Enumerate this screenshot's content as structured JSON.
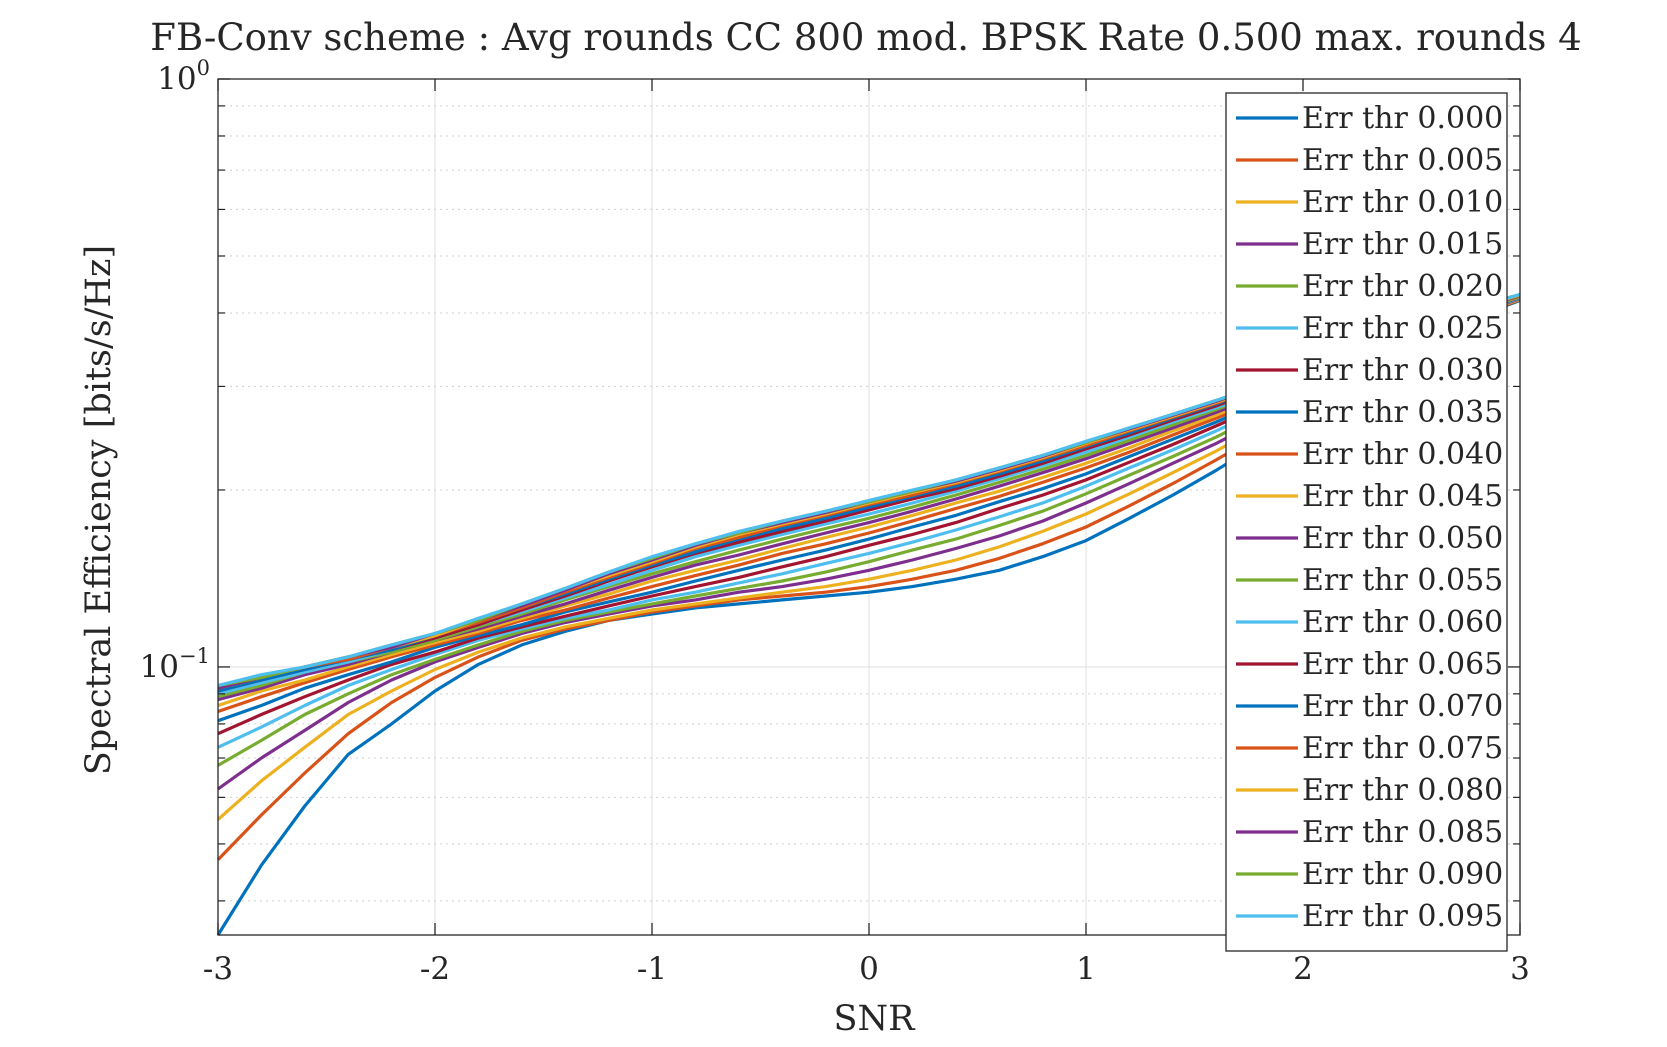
{
  "chart_data": {
    "type": "line",
    "title": "FB-Conv scheme : Avg rounds CC 800 mod. BPSK Rate 0.500 max. rounds 4",
    "xlabel": "SNR",
    "ylabel": "Spectral Efficiency [bits/s/Hz]",
    "xlim": [
      -3,
      3
    ],
    "ylim": [
      0.035,
      1
    ],
    "y_scale": "log",
    "grid": true,
    "legend_position": "right-inside",
    "x_ticks": [
      "-3",
      "-2",
      "-1",
      "0",
      "1",
      "2",
      "3"
    ],
    "y_tick_labels": [
      {
        "base": "10",
        "exp": "0",
        "value": 1
      },
      {
        "base": "10",
        "exp": "−1",
        "value": 0.1
      }
    ],
    "x": [
      -3,
      -2.8,
      -2.6,
      -2.4,
      -2.2,
      -2,
      -1.8,
      -1.6,
      -1.4,
      -1.2,
      -1,
      -0.8,
      -0.6,
      -0.4,
      -0.2,
      0,
      0.2,
      0.4,
      0.6,
      0.8,
      1,
      1.2,
      1.4,
      1.6,
      1.8,
      2,
      2.2,
      2.4,
      2.6,
      2.8,
      3
    ],
    "series": [
      {
        "name": "Err thr 0.000",
        "color": "#0072BD",
        "values": [
          0.035,
          0.046,
          0.058,
          0.071,
          0.08,
          0.091,
          0.101,
          0.109,
          0.115,
          0.12,
          0.123,
          0.126,
          0.128,
          0.13,
          0.132,
          0.134,
          0.137,
          0.141,
          0.146,
          0.154,
          0.164,
          0.179,
          0.196,
          0.216,
          0.24,
          0.28,
          0.31,
          0.34,
          0.37,
          0.395,
          0.42
        ]
      },
      {
        "name": "Err thr 0.005",
        "color": "#D95319",
        "values": [
          0.047,
          0.056,
          0.066,
          0.077,
          0.087,
          0.096,
          0.104,
          0.111,
          0.116,
          0.12,
          0.124,
          0.127,
          0.13,
          0.132,
          0.134,
          0.137,
          0.141,
          0.146,
          0.153,
          0.162,
          0.173,
          0.188,
          0.205,
          0.225,
          0.248,
          0.285,
          0.315,
          0.345,
          0.372,
          0.397,
          0.421
        ]
      },
      {
        "name": "Err thr 0.010",
        "color": "#EDB120",
        "values": [
          0.055,
          0.064,
          0.073,
          0.083,
          0.091,
          0.099,
          0.106,
          0.112,
          0.117,
          0.121,
          0.125,
          0.128,
          0.131,
          0.134,
          0.137,
          0.141,
          0.146,
          0.152,
          0.16,
          0.17,
          0.182,
          0.197,
          0.214,
          0.233,
          0.256,
          0.29,
          0.319,
          0.348,
          0.374,
          0.399,
          0.422
        ]
      },
      {
        "name": "Err thr 0.015",
        "color": "#7E2F8E",
        "values": [
          0.062,
          0.07,
          0.078,
          0.087,
          0.095,
          0.102,
          0.108,
          0.114,
          0.119,
          0.123,
          0.127,
          0.13,
          0.134,
          0.137,
          0.141,
          0.146,
          0.152,
          0.159,
          0.167,
          0.177,
          0.19,
          0.205,
          0.222,
          0.24,
          0.262,
          0.295,
          0.323,
          0.351,
          0.376,
          0.4,
          0.423
        ]
      },
      {
        "name": "Err thr 0.020",
        "color": "#77AC30",
        "values": [
          0.068,
          0.075,
          0.083,
          0.09,
          0.097,
          0.103,
          0.109,
          0.115,
          0.12,
          0.124,
          0.128,
          0.132,
          0.136,
          0.14,
          0.145,
          0.151,
          0.158,
          0.165,
          0.174,
          0.184,
          0.197,
          0.212,
          0.228,
          0.246,
          0.268,
          0.299,
          0.326,
          0.353,
          0.378,
          0.401,
          0.424
        ]
      },
      {
        "name": "Err thr 0.025",
        "color": "#4DBEEE",
        "values": [
          0.073,
          0.079,
          0.086,
          0.093,
          0.099,
          0.105,
          0.111,
          0.116,
          0.121,
          0.125,
          0.13,
          0.134,
          0.139,
          0.144,
          0.15,
          0.156,
          0.163,
          0.171,
          0.18,
          0.19,
          0.203,
          0.218,
          0.234,
          0.252,
          0.273,
          0.303,
          0.329,
          0.355,
          0.379,
          0.402,
          0.424
        ]
      },
      {
        "name": "Err thr 0.030",
        "color": "#A2142F",
        "values": [
          0.077,
          0.083,
          0.089,
          0.095,
          0.101,
          0.106,
          0.112,
          0.117,
          0.122,
          0.127,
          0.132,
          0.137,
          0.142,
          0.148,
          0.154,
          0.161,
          0.168,
          0.176,
          0.186,
          0.196,
          0.208,
          0.223,
          0.239,
          0.257,
          0.277,
          0.306,
          0.332,
          0.357,
          0.381,
          0.403,
          0.425
        ]
      },
      {
        "name": "Err thr 0.035",
        "color": "#0072BD",
        "values": [
          0.081,
          0.086,
          0.092,
          0.097,
          0.102,
          0.108,
          0.113,
          0.118,
          0.124,
          0.129,
          0.134,
          0.14,
          0.146,
          0.152,
          0.158,
          0.165,
          0.173,
          0.181,
          0.191,
          0.201,
          0.213,
          0.228,
          0.244,
          0.261,
          0.281,
          0.309,
          0.334,
          0.359,
          0.382,
          0.404,
          0.425
        ]
      },
      {
        "name": "Err thr 0.040",
        "color": "#D95319",
        "values": [
          0.084,
          0.089,
          0.094,
          0.099,
          0.104,
          0.109,
          0.114,
          0.12,
          0.125,
          0.131,
          0.137,
          0.143,
          0.149,
          0.156,
          0.162,
          0.169,
          0.177,
          0.186,
          0.195,
          0.206,
          0.218,
          0.232,
          0.248,
          0.265,
          0.284,
          0.312,
          0.336,
          0.36,
          0.383,
          0.405,
          0.426
        ]
      },
      {
        "name": "Err thr 0.045",
        "color": "#EDB120",
        "values": [
          0.086,
          0.091,
          0.095,
          0.1,
          0.105,
          0.11,
          0.115,
          0.121,
          0.127,
          0.133,
          0.14,
          0.146,
          0.152,
          0.159,
          0.166,
          0.173,
          0.181,
          0.19,
          0.199,
          0.21,
          0.222,
          0.236,
          0.252,
          0.268,
          0.287,
          0.314,
          0.338,
          0.362,
          0.384,
          0.405,
          0.426
        ]
      },
      {
        "name": "Err thr 0.050",
        "color": "#7E2F8E",
        "values": [
          0.088,
          0.092,
          0.097,
          0.101,
          0.106,
          0.111,
          0.116,
          0.122,
          0.128,
          0.135,
          0.142,
          0.149,
          0.155,
          0.162,
          0.169,
          0.176,
          0.184,
          0.193,
          0.203,
          0.214,
          0.226,
          0.24,
          0.255,
          0.271,
          0.29,
          0.316,
          0.34,
          0.363,
          0.385,
          0.406,
          0.427
        ]
      },
      {
        "name": "Err thr 0.055",
        "color": "#77AC30",
        "values": [
          0.089,
          0.093,
          0.098,
          0.102,
          0.106,
          0.111,
          0.117,
          0.123,
          0.13,
          0.137,
          0.144,
          0.151,
          0.158,
          0.165,
          0.172,
          0.179,
          0.187,
          0.196,
          0.206,
          0.217,
          0.229,
          0.243,
          0.258,
          0.274,
          0.292,
          0.318,
          0.341,
          0.364,
          0.386,
          0.407,
          0.427
        ]
      },
      {
        "name": "Err thr 0.060",
        "color": "#4DBEEE",
        "values": [
          0.09,
          0.094,
          0.098,
          0.102,
          0.107,
          0.112,
          0.118,
          0.124,
          0.131,
          0.138,
          0.146,
          0.154,
          0.161,
          0.168,
          0.175,
          0.182,
          0.19,
          0.199,
          0.209,
          0.22,
          0.232,
          0.246,
          0.261,
          0.276,
          0.294,
          0.319,
          0.342,
          0.365,
          0.386,
          0.407,
          0.428
        ]
      },
      {
        "name": "Err thr 0.065",
        "color": "#A2142F",
        "values": [
          0.091,
          0.095,
          0.099,
          0.103,
          0.107,
          0.112,
          0.118,
          0.125,
          0.132,
          0.14,
          0.148,
          0.156,
          0.163,
          0.17,
          0.177,
          0.185,
          0.193,
          0.201,
          0.211,
          0.222,
          0.235,
          0.248,
          0.263,
          0.278,
          0.296,
          0.32,
          0.343,
          0.366,
          0.387,
          0.408,
          0.428
        ]
      },
      {
        "name": "Err thr 0.070",
        "color": "#0072BD",
        "values": [
          0.091,
          0.095,
          0.099,
          0.103,
          0.107,
          0.113,
          0.119,
          0.126,
          0.133,
          0.141,
          0.149,
          0.157,
          0.165,
          0.172,
          0.179,
          0.187,
          0.195,
          0.203,
          0.213,
          0.224,
          0.237,
          0.25,
          0.265,
          0.28,
          0.297,
          0.321,
          0.344,
          0.366,
          0.388,
          0.408,
          0.429
        ]
      },
      {
        "name": "Err thr 0.075",
        "color": "#D95319",
        "values": [
          0.092,
          0.096,
          0.1,
          0.103,
          0.108,
          0.113,
          0.119,
          0.126,
          0.134,
          0.142,
          0.15,
          0.159,
          0.166,
          0.174,
          0.181,
          0.189,
          0.196,
          0.205,
          0.215,
          0.226,
          0.238,
          0.252,
          0.266,
          0.281,
          0.298,
          0.322,
          0.345,
          0.367,
          0.388,
          0.409,
          0.429
        ]
      },
      {
        "name": "Err thr 0.080",
        "color": "#EDB120",
        "values": [
          0.092,
          0.096,
          0.1,
          0.104,
          0.108,
          0.113,
          0.12,
          0.127,
          0.135,
          0.143,
          0.151,
          0.16,
          0.168,
          0.175,
          0.182,
          0.19,
          0.198,
          0.206,
          0.216,
          0.227,
          0.24,
          0.253,
          0.267,
          0.282,
          0.299,
          0.323,
          0.345,
          0.367,
          0.389,
          0.409,
          0.429
        ]
      },
      {
        "name": "Err thr 0.085",
        "color": "#7E2F8E",
        "values": [
          0.092,
          0.096,
          0.1,
          0.104,
          0.108,
          0.114,
          0.12,
          0.127,
          0.135,
          0.144,
          0.152,
          0.161,
          0.169,
          0.176,
          0.183,
          0.191,
          0.199,
          0.207,
          0.217,
          0.228,
          0.241,
          0.254,
          0.268,
          0.283,
          0.3,
          0.324,
          0.346,
          0.368,
          0.389,
          0.41,
          0.43
        ]
      },
      {
        "name": "Err thr 0.090",
        "color": "#77AC30",
        "values": [
          0.093,
          0.096,
          0.1,
          0.104,
          0.109,
          0.114,
          0.12,
          0.128,
          0.136,
          0.145,
          0.153,
          0.162,
          0.169,
          0.177,
          0.184,
          0.191,
          0.199,
          0.208,
          0.218,
          0.229,
          0.241,
          0.255,
          0.269,
          0.284,
          0.3,
          0.324,
          0.346,
          0.368,
          0.389,
          0.41,
          0.43
        ]
      },
      {
        "name": "Err thr 0.095",
        "color": "#4DBEEE",
        "values": [
          0.093,
          0.097,
          0.1,
          0.104,
          0.109,
          0.114,
          0.121,
          0.128,
          0.136,
          0.145,
          0.154,
          0.162,
          0.17,
          0.177,
          0.184,
          0.192,
          0.2,
          0.208,
          0.218,
          0.229,
          0.242,
          0.255,
          0.269,
          0.284,
          0.301,
          0.325,
          0.347,
          0.369,
          0.39,
          0.41,
          0.43
        ]
      }
    ]
  }
}
